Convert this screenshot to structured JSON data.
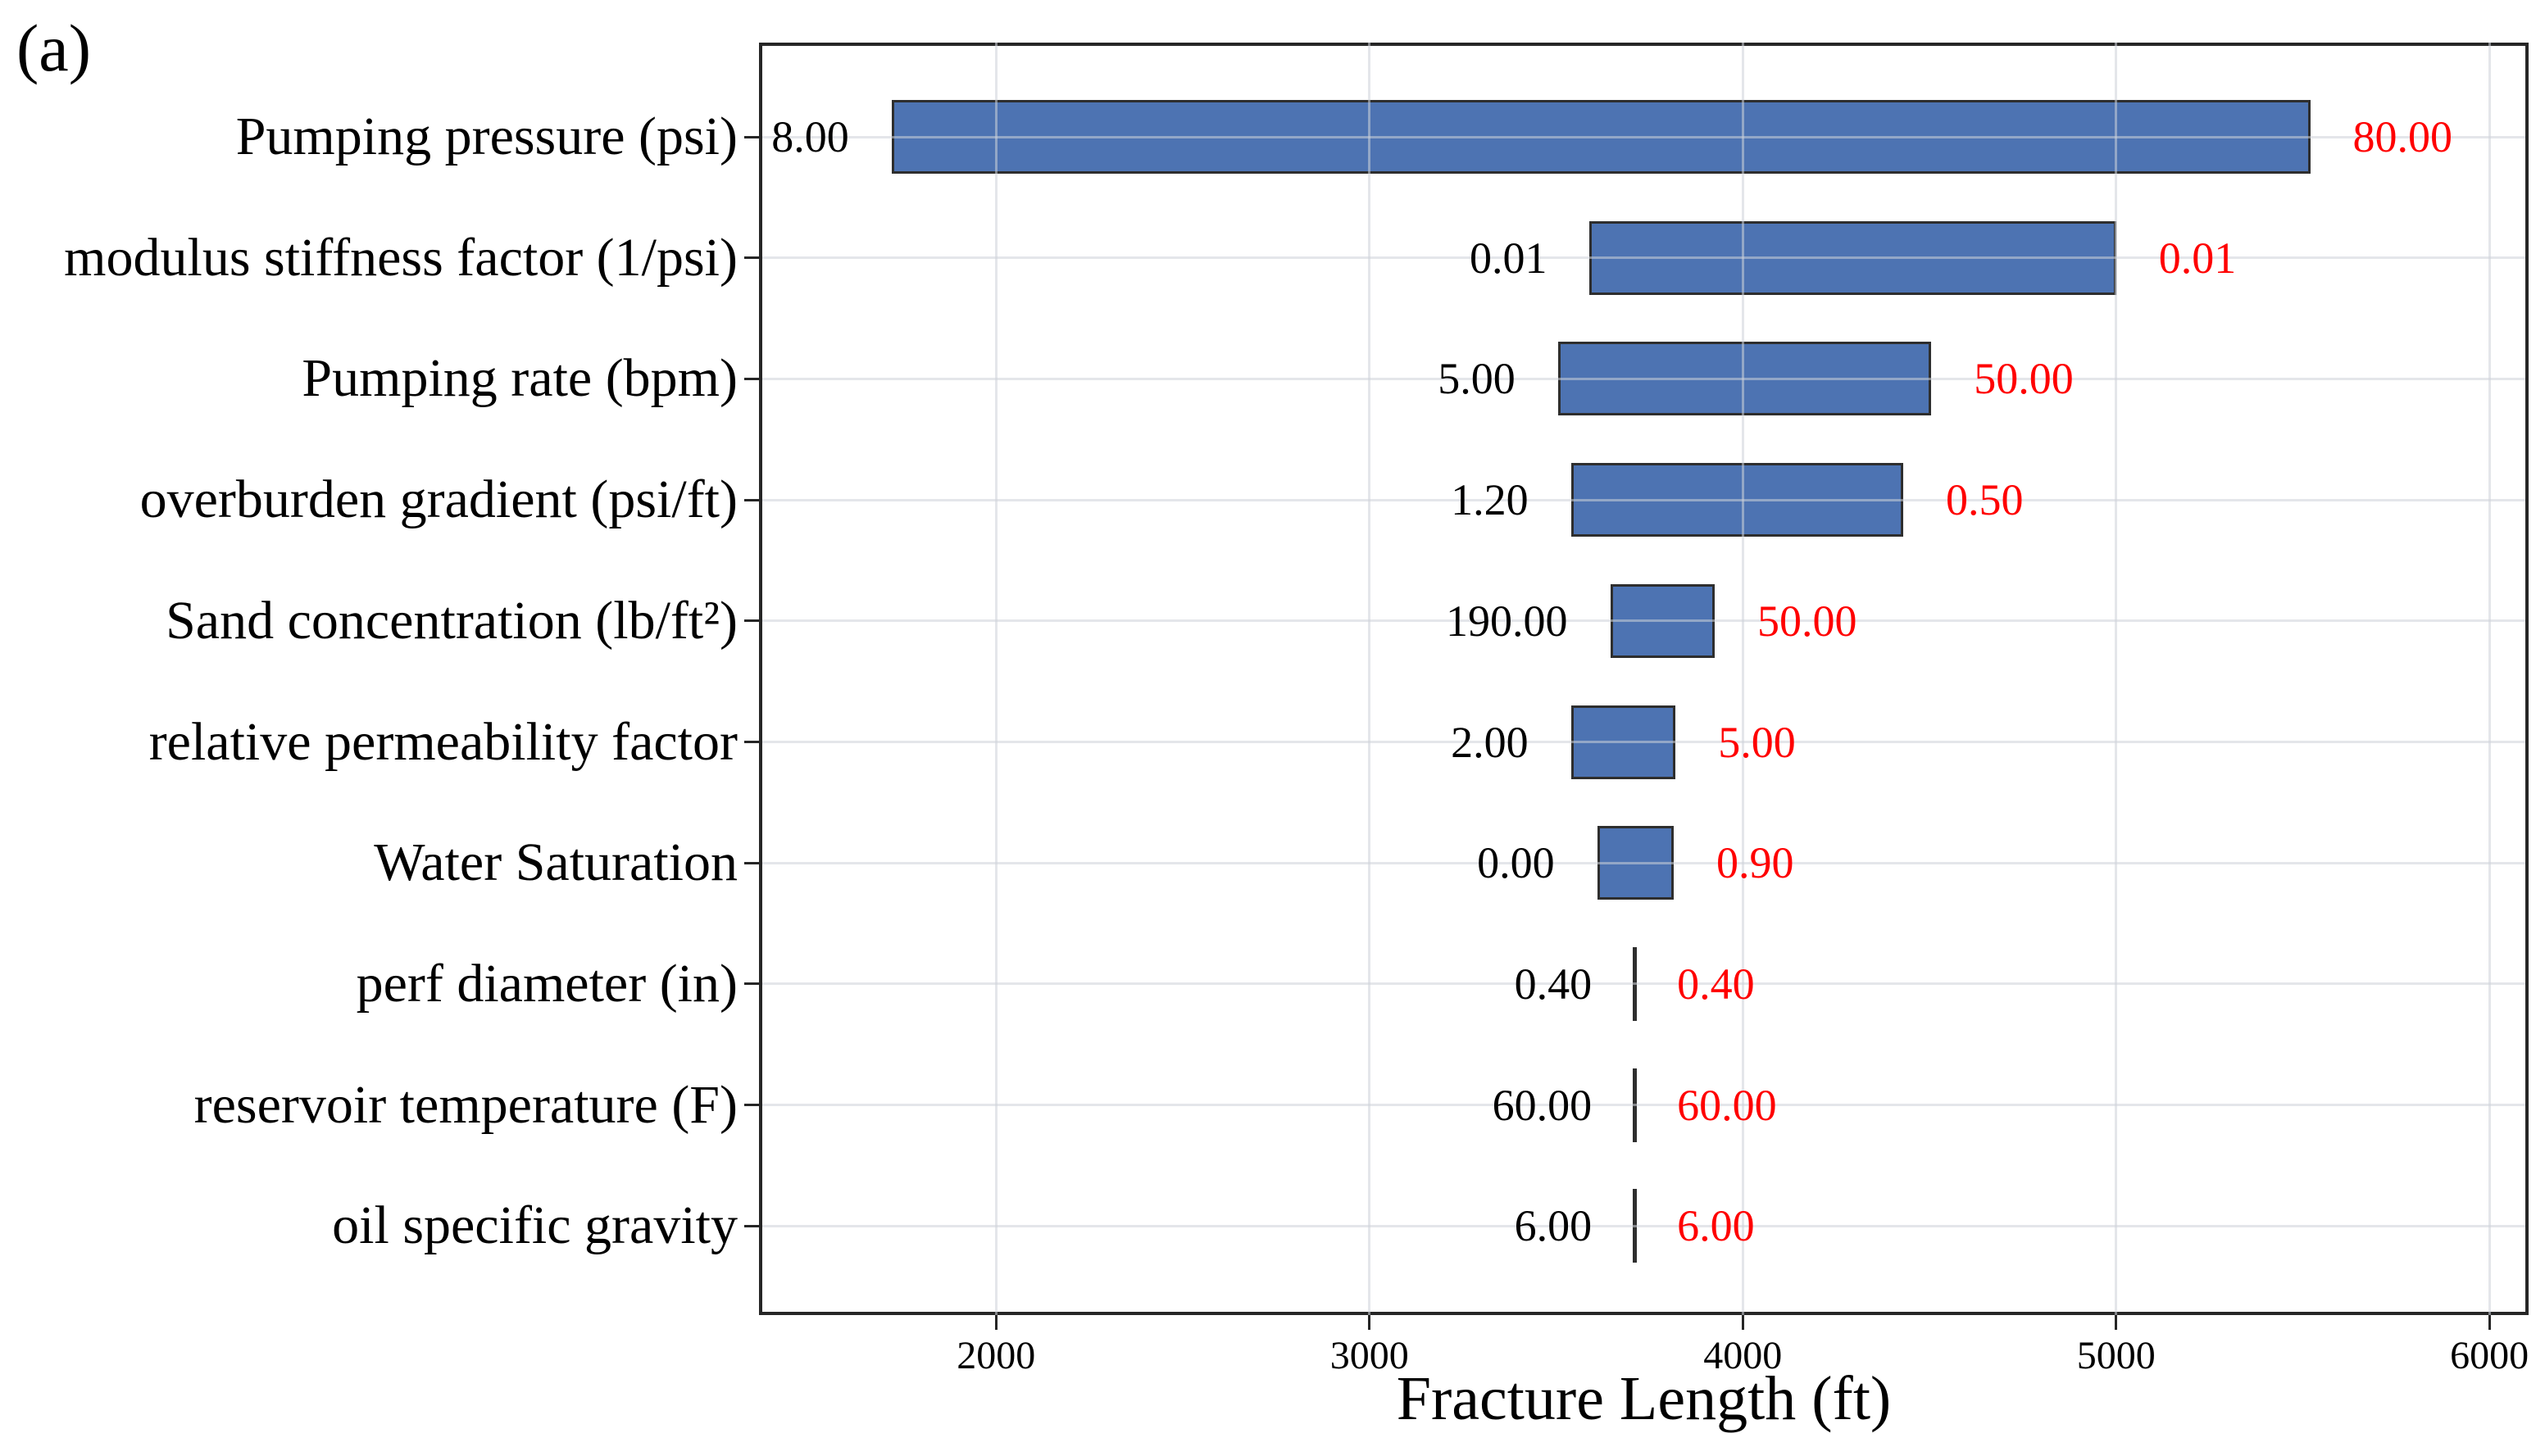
{
  "panel_label": "(a)",
  "colors": {
    "bar_fill": "#4d73b2",
    "bar_edge": "#2e2e2e",
    "low_label_text": "#000000",
    "high_label_text": "#ff0000",
    "gridline": "#cdd1d8",
    "axis": "#262626"
  },
  "chart_data": {
    "type": "bar",
    "variant": "tornado-sensitivity",
    "title": "",
    "xlabel": "Fracture Length (ft)",
    "ylabel": "",
    "xlim": [
      1365,
      6105
    ],
    "x_ticks": [
      2000,
      3000,
      4000,
      5000,
      6000
    ],
    "x_tick_labels": [
      "2000",
      "3000",
      "4000",
      "5000",
      "6000"
    ],
    "grid": true,
    "legend": false,
    "base_value": 3710,
    "categories": [
      "Pumping pressure (psi)",
      "modulus stiffness factor (1/psi)",
      "Pumping rate (bpm)",
      "overburden gradient (psi/ft)",
      "Sand concentration (lb/ft²)",
      "relative permeability factor",
      "Water Saturation",
      "perf diameter (in)",
      "reservoir temperature (F)",
      "oil specific gravity"
    ],
    "rows": [
      {
        "category": "Pumping pressure (psi)",
        "low_label": "8.00",
        "high_label": "80.00",
        "bar_start": 1720,
        "bar_end": 5520
      },
      {
        "category": "modulus stiffness factor (1/psi)",
        "low_label": "0.01",
        "high_label": "0.01",
        "bar_start": 3590,
        "bar_end": 5000
      },
      {
        "category": "Pumping rate (bpm)",
        "low_label": "5.00",
        "high_label": "50.00",
        "bar_start": 3505,
        "bar_end": 4505
      },
      {
        "category": "overburden gradient (psi/ft)",
        "low_label": "1.20",
        "high_label": "0.50",
        "bar_start": 3540,
        "bar_end": 4430
      },
      {
        "category": "Sand concentration (lb/ft²)",
        "low_label": "190.00",
        "high_label": "50.00",
        "bar_start": 3645,
        "bar_end": 3925
      },
      {
        "category": "relative permeability factor",
        "low_label": "2.00",
        "high_label": "5.00",
        "bar_start": 3540,
        "bar_end": 3820
      },
      {
        "category": "Water Saturation",
        "low_label": "0.00",
        "high_label": "0.90",
        "bar_start": 3610,
        "bar_end": 3815
      },
      {
        "category": "perf diameter (in)",
        "low_label": "0.40",
        "high_label": "0.40",
        "bar_start": 3710,
        "bar_end": 3710
      },
      {
        "category": "reservoir temperature (F)",
        "low_label": "60.00",
        "high_label": "60.00",
        "bar_start": 3710,
        "bar_end": 3710
      },
      {
        "category": "oil specific gravity",
        "low_label": "6.00",
        "high_label": "6.00",
        "bar_start": 3710,
        "bar_end": 3710
      }
    ]
  }
}
